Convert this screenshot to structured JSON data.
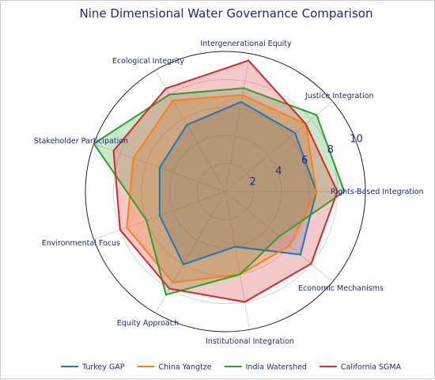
{
  "chart_data": {
    "type": "radar",
    "title": "Nine Dimensional Water Governance Comparison",
    "categories": [
      "Rights-Based Integration",
      "Justice Integration",
      "Intergenerational Equity",
      "Ecological Integrity",
      "Stakeholder Participation",
      "Environmental Focus",
      "Equity Approach",
      "Institutional Integration",
      "Economic Mechanisms"
    ],
    "rlim": [
      0,
      10
    ],
    "r_ticks": [
      "2",
      "4",
      "6",
      "8",
      "10"
    ],
    "r_tick_values": [
      2,
      4,
      6,
      8,
      10
    ],
    "grid": true,
    "legend_position": "bottom",
    "series": [
      {
        "name": "Turkey GAP",
        "color": "#1f77b4",
        "values": [
          6.5,
          6.5,
          6.5,
          5.5,
          5.0,
          5.0,
          6.0,
          4.0,
          7.0
        ]
      },
      {
        "name": "China Yangtze",
        "color": "#ff7f0e",
        "values": [
          6.5,
          7.5,
          7.0,
          7.5,
          7.0,
          7.5,
          7.5,
          6.0,
          6.0
        ]
      },
      {
        "name": "India Watershed",
        "color": "#2ca02c",
        "values": [
          8.5,
          8.5,
          7.5,
          8.0,
          10.0,
          6.0,
          8.5,
          6.0,
          5.0
        ]
      },
      {
        "name": "California SGMA",
        "color": "#d62728",
        "values": [
          8.0,
          7.5,
          9.5,
          8.5,
          8.5,
          8.0,
          8.0,
          8.0,
          8.0
        ]
      }
    ]
  }
}
